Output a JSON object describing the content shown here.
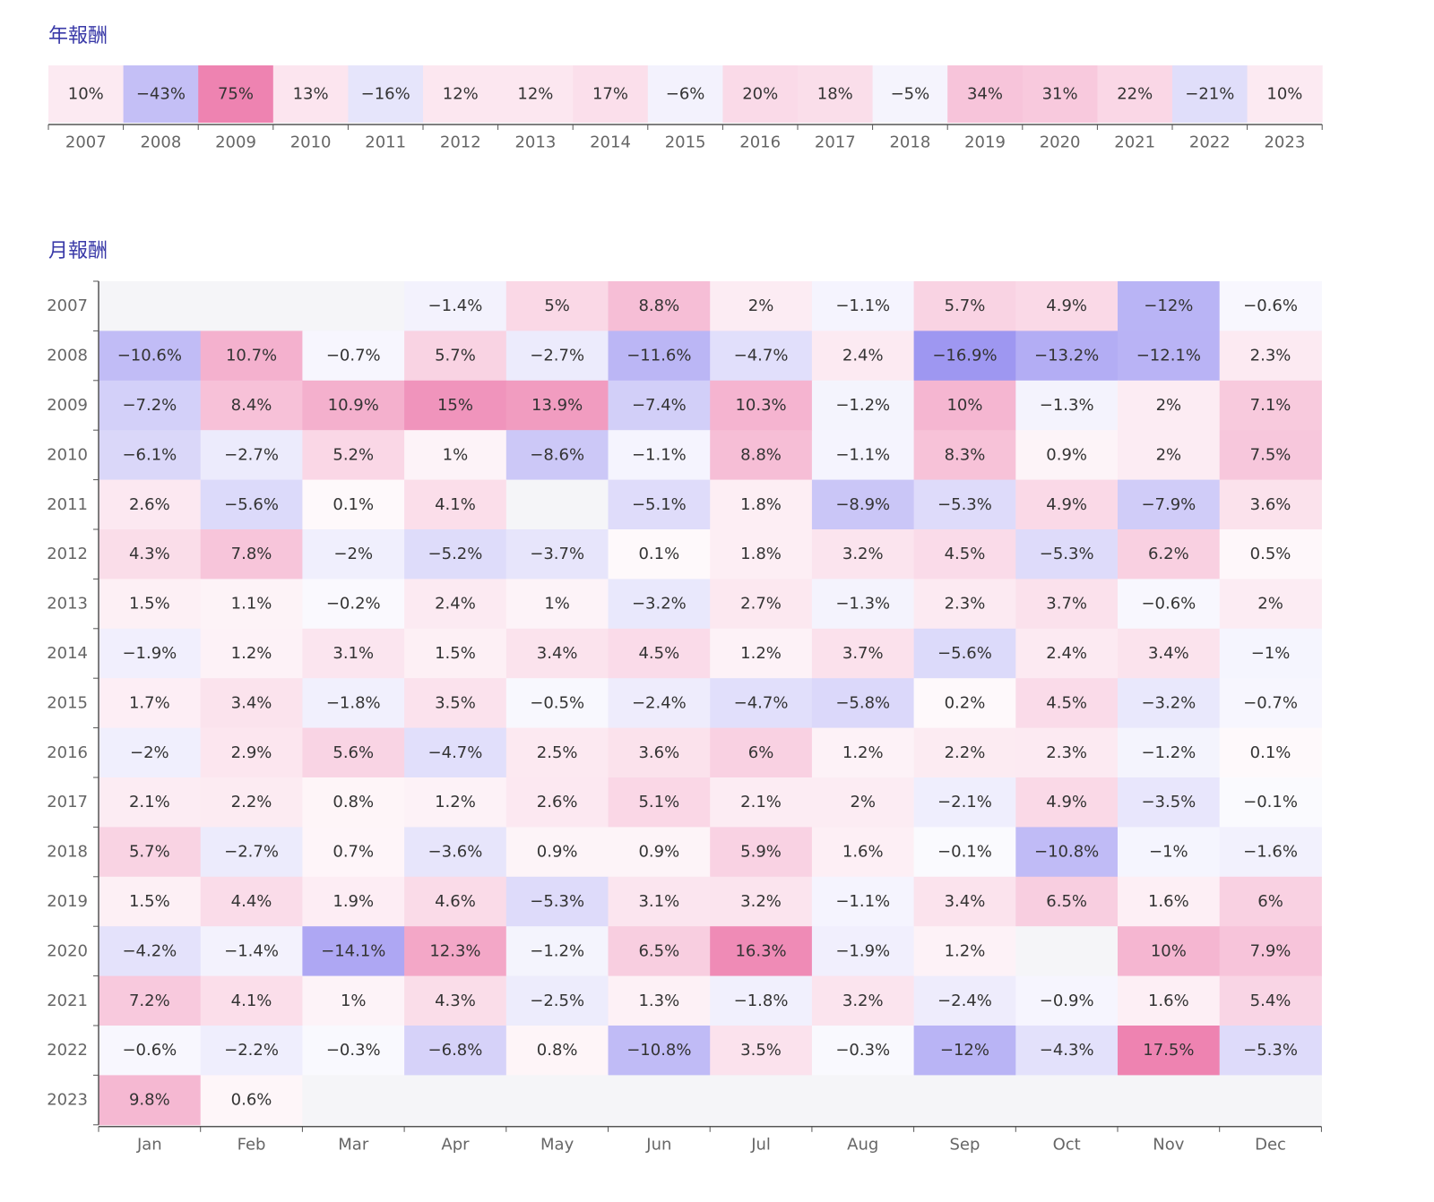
{
  "annual": {
    "title": "年報酬",
    "chart_data": {
      "type": "heatmap",
      "categories": [
        "2007",
        "2008",
        "2009",
        "2010",
        "2011",
        "2012",
        "2013",
        "2014",
        "2015",
        "2016",
        "2017",
        "2018",
        "2019",
        "2020",
        "2021",
        "2022",
        "2023"
      ],
      "values": [
        10,
        -43,
        75,
        13,
        -16,
        12,
        12,
        17,
        -6,
        20,
        18,
        -5,
        34,
        31,
        22,
        -21,
        10
      ],
      "labels": [
        "10%",
        "−43%",
        "75%",
        "13%",
        "−16%",
        "12%",
        "12%",
        "17%",
        "−6%",
        "20%",
        "18%",
        "−5%",
        "34%",
        "31%",
        "22%",
        "−21%",
        "10%"
      ]
    }
  },
  "monthly": {
    "title": "月報酬",
    "chart_data": {
      "type": "heatmap",
      "x": [
        "Jan",
        "Feb",
        "Mar",
        "Apr",
        "May",
        "Jun",
        "Jul",
        "Aug",
        "Sep",
        "Oct",
        "Nov",
        "Dec"
      ],
      "y": [
        "2007",
        "2008",
        "2009",
        "2010",
        "2011",
        "2012",
        "2013",
        "2014",
        "2015",
        "2016",
        "2017",
        "2018",
        "2019",
        "2020",
        "2021",
        "2022",
        "2023"
      ],
      "values": [
        [
          null,
          null,
          null,
          -1.4,
          5,
          8.8,
          2,
          -1.1,
          5.7,
          4.9,
          -12,
          -0.6
        ],
        [
          -10.6,
          10.7,
          -0.7,
          5.7,
          -2.7,
          -11.6,
          -4.7,
          2.4,
          -16.9,
          -13.2,
          -12.1,
          2.3
        ],
        [
          -7.2,
          8.4,
          10.9,
          15,
          13.9,
          -7.4,
          10.3,
          -1.2,
          10,
          -1.3,
          2,
          7.1
        ],
        [
          -6.1,
          -2.7,
          5.2,
          1,
          -8.6,
          -1.1,
          8.8,
          -1.1,
          8.3,
          0.9,
          2,
          7.5
        ],
        [
          2.6,
          -5.6,
          0.1,
          4.1,
          null,
          -5.1,
          1.8,
          -8.9,
          -5.3,
          4.9,
          -7.9,
          3.6
        ],
        [
          4.3,
          7.8,
          -2,
          -5.2,
          -3.7,
          0.1,
          1.8,
          3.2,
          4.5,
          -5.3,
          6.2,
          0.5
        ],
        [
          1.5,
          1.1,
          -0.2,
          2.4,
          1,
          -3.2,
          2.7,
          -1.3,
          2.3,
          3.7,
          -0.6,
          2
        ],
        [
          -1.9,
          1.2,
          3.1,
          1.5,
          3.4,
          4.5,
          1.2,
          3.7,
          -5.6,
          2.4,
          3.4,
          -1
        ],
        [
          1.7,
          3.4,
          -1.8,
          3.5,
          -0.5,
          -2.4,
          -4.7,
          -5.8,
          0.2,
          4.5,
          -3.2,
          -0.7
        ],
        [
          -2,
          2.9,
          5.6,
          -4.7,
          2.5,
          3.6,
          6,
          1.2,
          2.2,
          2.3,
          -1.2,
          0.1
        ],
        [
          2.1,
          2.2,
          0.8,
          1.2,
          2.6,
          5.1,
          2.1,
          2,
          -2.1,
          4.9,
          -3.5,
          -0.1
        ],
        [
          5.7,
          -2.7,
          0.7,
          -3.6,
          0.9,
          0.9,
          5.9,
          1.6,
          -0.1,
          -10.8,
          -1,
          -1.6
        ],
        [
          1.5,
          4.4,
          1.9,
          4.6,
          -5.3,
          3.1,
          3.2,
          -1.1,
          3.4,
          6.5,
          1.6,
          6
        ],
        [
          -4.2,
          -1.4,
          -14.1,
          12.3,
          -1.2,
          6.5,
          16.3,
          -1.9,
          1.2,
          null,
          10,
          7.9
        ],
        [
          7.2,
          4.1,
          1,
          4.3,
          -2.5,
          1.3,
          -1.8,
          3.2,
          -2.4,
          -0.9,
          1.6,
          5.4
        ],
        [
          -0.6,
          -2.2,
          -0.3,
          -6.8,
          0.8,
          -10.8,
          3.5,
          -0.3,
          -12,
          -4.3,
          17.5,
          -5.3
        ],
        [
          9.8,
          0.6,
          null,
          null,
          null,
          null,
          null,
          null,
          null,
          null,
          null,
          null
        ]
      ],
      "labels": [
        [
          "",
          "",
          "",
          "−1.4%",
          "5%",
          "8.8%",
          "2%",
          "−1.1%",
          "5.7%",
          "4.9%",
          "−12%",
          "−0.6%"
        ],
        [
          "−10.6%",
          "10.7%",
          "−0.7%",
          "5.7%",
          "−2.7%",
          "−11.6%",
          "−4.7%",
          "2.4%",
          "−16.9%",
          "−13.2%",
          "−12.1%",
          "2.3%"
        ],
        [
          "−7.2%",
          "8.4%",
          "10.9%",
          "15%",
          "13.9%",
          "−7.4%",
          "10.3%",
          "−1.2%",
          "10%",
          "−1.3%",
          "2%",
          "7.1%"
        ],
        [
          "−6.1%",
          "−2.7%",
          "5.2%",
          "1%",
          "−8.6%",
          "−1.1%",
          "8.8%",
          "−1.1%",
          "8.3%",
          "0.9%",
          "2%",
          "7.5%"
        ],
        [
          "2.6%",
          "−5.6%",
          "0.1%",
          "4.1%",
          "",
          "−5.1%",
          "1.8%",
          "−8.9%",
          "−5.3%",
          "4.9%",
          "−7.9%",
          "3.6%"
        ],
        [
          "4.3%",
          "7.8%",
          "−2%",
          "−5.2%",
          "−3.7%",
          "0.1%",
          "1.8%",
          "3.2%",
          "4.5%",
          "−5.3%",
          "6.2%",
          "0.5%"
        ],
        [
          "1.5%",
          "1.1%",
          "−0.2%",
          "2.4%",
          "1%",
          "−3.2%",
          "2.7%",
          "−1.3%",
          "2.3%",
          "3.7%",
          "−0.6%",
          "2%"
        ],
        [
          "−1.9%",
          "1.2%",
          "3.1%",
          "1.5%",
          "3.4%",
          "4.5%",
          "1.2%",
          "3.7%",
          "−5.6%",
          "2.4%",
          "3.4%",
          "−1%"
        ],
        [
          "1.7%",
          "3.4%",
          "−1.8%",
          "3.5%",
          "−0.5%",
          "−2.4%",
          "−4.7%",
          "−5.8%",
          "0.2%",
          "4.5%",
          "−3.2%",
          "−0.7%"
        ],
        [
          "−2%",
          "2.9%",
          "5.6%",
          "−4.7%",
          "2.5%",
          "3.6%",
          "6%",
          "1.2%",
          "2.2%",
          "2.3%",
          "−1.2%",
          "0.1%"
        ],
        [
          "2.1%",
          "2.2%",
          "0.8%",
          "1.2%",
          "2.6%",
          "5.1%",
          "2.1%",
          "2%",
          "−2.1%",
          "4.9%",
          "−3.5%",
          "−0.1%"
        ],
        [
          "5.7%",
          "−2.7%",
          "0.7%",
          "−3.6%",
          "0.9%",
          "0.9%",
          "5.9%",
          "1.6%",
          "−0.1%",
          "−10.8%",
          "−1%",
          "−1.6%"
        ],
        [
          "1.5%",
          "4.4%",
          "1.9%",
          "4.6%",
          "−5.3%",
          "3.1%",
          "3.2%",
          "−1.1%",
          "3.4%",
          "6.5%",
          "1.6%",
          "6%"
        ],
        [
          "−4.2%",
          "−1.4%",
          "−14.1%",
          "12.3%",
          "−1.2%",
          "6.5%",
          "16.3%",
          "−1.9%",
          "1.2%",
          "",
          "10%",
          "7.9%"
        ],
        [
          "7.2%",
          "4.1%",
          "1%",
          "4.3%",
          "−2.5%",
          "1.3%",
          "−1.8%",
          "3.2%",
          "−2.4%",
          "−0.9%",
          "1.6%",
          "5.4%"
        ],
        [
          "−0.6%",
          "−2.2%",
          "−0.3%",
          "−6.8%",
          "0.8%",
          "−10.8%",
          "3.5%",
          "−0.3%",
          "−12%",
          "−4.3%",
          "17.5%",
          "−5.3%"
        ],
        [
          "9.8%",
          "0.6%",
          "",
          "",
          "",
          "",
          "",
          "",
          "",
          "",
          "",
          ""
        ]
      ]
    }
  },
  "colors": {
    "positive": "#ee82b0",
    "negative": "#9a92f0",
    "empty": "#f5f5f8",
    "title": "#3a3aa8"
  }
}
